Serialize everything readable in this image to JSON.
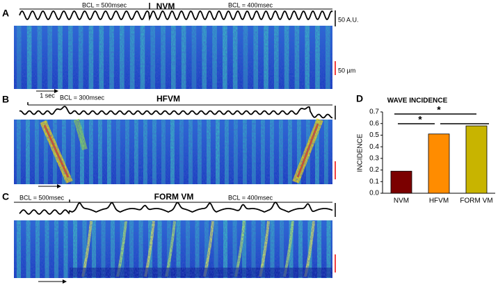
{
  "panels": [
    {
      "letter": "A",
      "title": "NVM",
      "bcl_left": "BCL = 500msec",
      "bcl_right": "BCL = 400msec",
      "amplitude_scale": "50 A.U.",
      "length_scale": "50 µm",
      "time_scale": "1 sec"
    },
    {
      "letter": "B",
      "title": "HFVM",
      "bcl_left": "BCL = 300msec"
    },
    {
      "letter": "C",
      "title": "FORM VM",
      "bcl_left": "BCL = 500msec",
      "bcl_right": "BCL = 400msec"
    }
  ],
  "chart_data": {
    "type": "bar",
    "panel_label": "D",
    "title": "WAVE INCIDENCE",
    "y_label": "INCIDENCE",
    "categories": [
      "NVM",
      "HFVM",
      "FORM VM"
    ],
    "values": [
      0.19,
      0.51,
      0.58
    ],
    "colors": [
      "#7b0000",
      "#ff8c00",
      "#c8b400"
    ],
    "ylim": [
      0,
      0.7
    ],
    "yticks": [
      {
        "value": 0,
        "label": "0.0"
      },
      0.1,
      0.2,
      0.3,
      0.4,
      0.5,
      0.6,
      0.7
    ],
    "annotations": [
      "*",
      "*"
    ]
  }
}
